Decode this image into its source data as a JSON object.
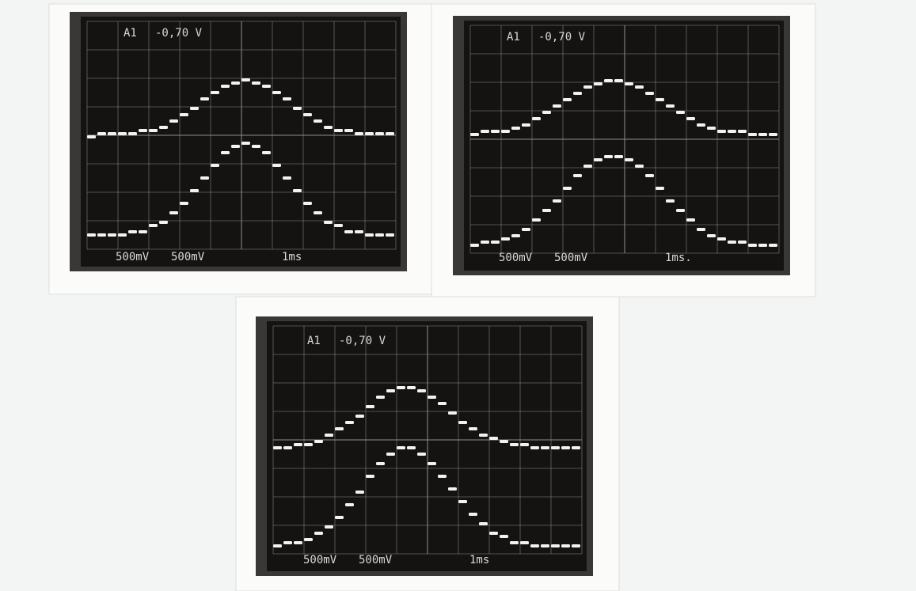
{
  "screens": [
    {
      "channel": "A1",
      "offset": "-0,70 V",
      "ch1_scale": "500mV",
      "ch2_scale": "500mV",
      "timebase": "1ms"
    },
    {
      "channel": "A1",
      "offset": "-0,70 V",
      "ch1_scale": "500mV",
      "ch2_scale": "500mV",
      "timebase": "1ms."
    },
    {
      "channel": "A1",
      "offset": "-0,70 V",
      "ch1_scale": "500mV",
      "ch2_scale": "500mV",
      "timebase": "1ms"
    }
  ]
}
